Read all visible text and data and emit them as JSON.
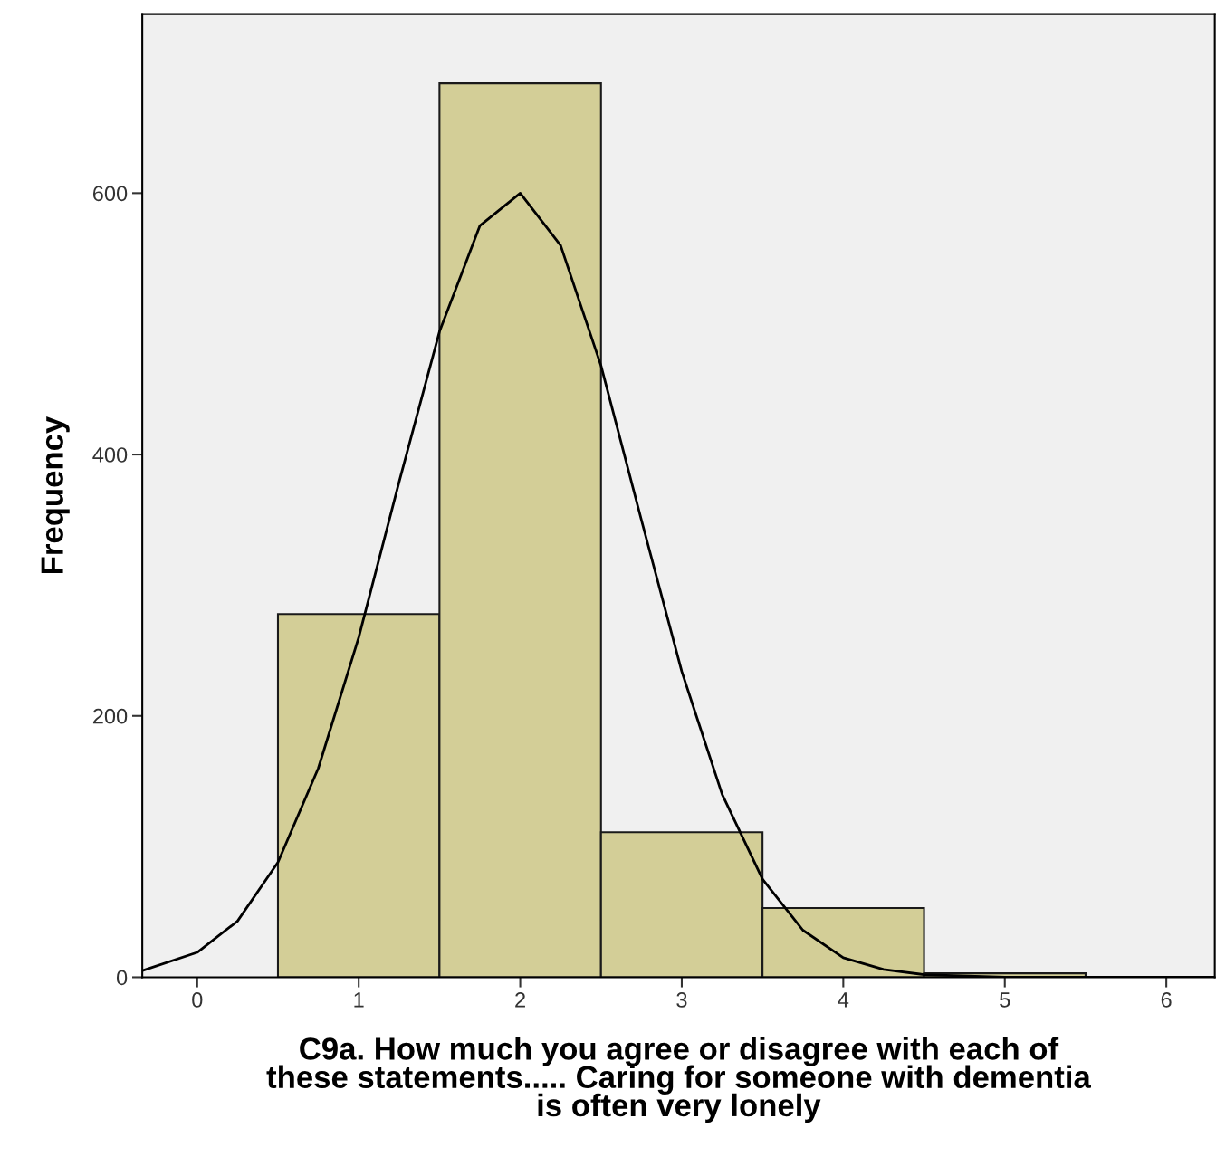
{
  "chart_data": {
    "type": "histogram",
    "xlabel": "C9a. How much you agree or disagree with each of\nthese statements..... Caring for someone with dementia\nis often very lonely",
    "ylabel": "Frequency",
    "bins": [
      0.5,
      1.5,
      2.5,
      3.5,
      4.5,
      5.5
    ],
    "values": [
      278,
      684,
      111,
      53,
      3
    ],
    "color": "#d3ce97",
    "series": [
      {
        "type": "line",
        "color": "#000000",
        "x": [
          -0.34,
          0,
          0.25,
          0.5,
          0.75,
          1,
          1.25,
          1.5,
          1.75,
          2,
          2.25,
          2.5,
          2.75,
          3,
          3.25,
          3.5,
          3.75,
          4,
          4.25,
          4.5,
          5,
          6.3
        ],
        "values": [
          5,
          19,
          43,
          88,
          160,
          260,
          379,
          494,
          575,
          600,
          560,
          468,
          350,
          234,
          140,
          75,
          36,
          15,
          6,
          2,
          0,
          0
        ]
      }
    ],
    "xlim": [
      -0.34,
      6.3
    ],
    "ylim": [
      0,
      737
    ],
    "xticks": [
      0,
      1,
      2,
      3,
      4,
      5,
      6
    ],
    "yticks": [
      0,
      200,
      400,
      600
    ],
    "grid": false,
    "legend": false
  }
}
